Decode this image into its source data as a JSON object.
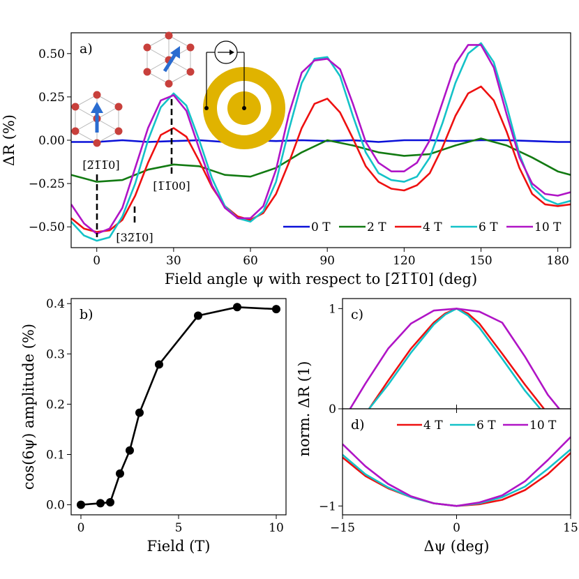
{
  "figure": {
    "panel_labels": [
      "a)",
      "b)",
      "c)",
      "d)"
    ],
    "colors": {
      "0 T": "#0a10d8",
      "2 T": "#127a12",
      "4 T": "#ee1010",
      "6 T": "#14c2c8",
      "10 T": "#b014c6",
      "gold": "#e0b300",
      "arrow": "#2a6cd0",
      "atom": "#c8403c"
    }
  },
  "chart_data": [
    {
      "id": "a",
      "type": "line",
      "title": "",
      "xlabel": "Field angle ψ with respect to [2̅1̅1̅0] (deg)",
      "ylabel": "ΔR (%)",
      "xlim": [
        -10,
        185
      ],
      "ylim": [
        -0.62,
        0.62
      ],
      "xticks": [
        0,
        30,
        60,
        90,
        120,
        150,
        180
      ],
      "yticks": [
        -0.5,
        -0.25,
        0.0,
        0.25,
        0.5
      ],
      "yticklabels": [
        "−0.50",
        "−0.25",
        "0.00",
        "0.25",
        "0.50"
      ],
      "legend": {
        "entries": [
          "0 T",
          "2 T",
          "4 T",
          "6 T",
          "10 T"
        ],
        "location": "lower-right"
      },
      "annotations": [
        {
          "text": "[2̅1̅1̅0]",
          "x": 0
        },
        {
          "text": "[1̅1̅00]",
          "x": 30
        },
        {
          "text": "[32̅1̅0]",
          "x": 15
        }
      ],
      "series": [
        {
          "name": "0 T",
          "x": [
            -10,
            0,
            10,
            20,
            30,
            40,
            50,
            60,
            70,
            80,
            90,
            100,
            110,
            120,
            130,
            140,
            150,
            160,
            170,
            180,
            185
          ],
          "y": [
            -0.01,
            -0.01,
            0.0,
            -0.01,
            -0.005,
            0.0,
            -0.01,
            0.0,
            -0.005,
            0.0,
            -0.005,
            0.0,
            -0.01,
            0.0,
            0.0,
            -0.005,
            0.0,
            0.0,
            -0.005,
            -0.01,
            -0.01
          ]
        },
        {
          "name": "2 T",
          "x": [
            -10,
            0,
            10,
            20,
            30,
            40,
            50,
            60,
            70,
            80,
            90,
            100,
            110,
            120,
            130,
            140,
            150,
            160,
            170,
            180,
            185
          ],
          "y": [
            -0.2,
            -0.24,
            -0.23,
            -0.17,
            -0.14,
            -0.15,
            -0.2,
            -0.21,
            -0.16,
            -0.07,
            0.0,
            -0.03,
            -0.07,
            -0.09,
            -0.08,
            -0.03,
            0.01,
            -0.03,
            -0.1,
            -0.18,
            -0.2
          ]
        },
        {
          "name": "4 T",
          "x": [
            -10,
            -5,
            0,
            5,
            10,
            15,
            20,
            25,
            30,
            35,
            40,
            45,
            50,
            55,
            60,
            65,
            70,
            75,
            80,
            85,
            90,
            95,
            100,
            105,
            110,
            115,
            120,
            125,
            130,
            135,
            140,
            145,
            150,
            155,
            160,
            165,
            170,
            175,
            180,
            185
          ],
          "y": [
            -0.45,
            -0.51,
            -0.53,
            -0.52,
            -0.46,
            -0.32,
            -0.13,
            0.03,
            0.07,
            0.02,
            -0.12,
            -0.27,
            -0.38,
            -0.44,
            -0.46,
            -0.42,
            -0.31,
            -0.13,
            0.07,
            0.21,
            0.24,
            0.16,
            0.01,
            -0.15,
            -0.24,
            -0.28,
            -0.29,
            -0.26,
            -0.19,
            -0.04,
            0.14,
            0.27,
            0.31,
            0.23,
            0.05,
            -0.16,
            -0.31,
            -0.37,
            -0.38,
            -0.37
          ]
        },
        {
          "name": "6 T",
          "x": [
            -10,
            -5,
            0,
            5,
            10,
            15,
            20,
            25,
            30,
            35,
            40,
            45,
            50,
            55,
            60,
            65,
            70,
            75,
            80,
            85,
            90,
            95,
            100,
            105,
            110,
            115,
            120,
            125,
            130,
            135,
            140,
            145,
            150,
            155,
            160,
            165,
            170,
            175,
            180,
            185
          ],
          "y": [
            -0.47,
            -0.55,
            -0.58,
            -0.56,
            -0.44,
            -0.25,
            0.0,
            0.19,
            0.27,
            0.2,
            0.0,
            -0.22,
            -0.38,
            -0.45,
            -0.47,
            -0.41,
            -0.24,
            0.06,
            0.33,
            0.47,
            0.48,
            0.37,
            0.14,
            -0.07,
            -0.19,
            -0.23,
            -0.24,
            -0.21,
            -0.1,
            0.1,
            0.33,
            0.5,
            0.56,
            0.45,
            0.2,
            -0.08,
            -0.27,
            -0.34,
            -0.37,
            -0.35
          ]
        },
        {
          "name": "10 T",
          "x": [
            -10,
            -5,
            0,
            5,
            10,
            15,
            20,
            25,
            30,
            35,
            40,
            45,
            50,
            55,
            60,
            65,
            70,
            75,
            80,
            85,
            90,
            95,
            100,
            105,
            110,
            115,
            120,
            125,
            130,
            135,
            140,
            145,
            150,
            155,
            160,
            165,
            170,
            175,
            180,
            185
          ],
          "y": [
            -0.37,
            -0.48,
            -0.54,
            -0.51,
            -0.39,
            -0.16,
            0.07,
            0.23,
            0.26,
            0.17,
            -0.05,
            -0.26,
            -0.39,
            -0.45,
            -0.45,
            -0.38,
            -0.17,
            0.15,
            0.39,
            0.46,
            0.47,
            0.41,
            0.21,
            -0.01,
            -0.13,
            -0.18,
            -0.18,
            -0.13,
            0.0,
            0.22,
            0.44,
            0.55,
            0.55,
            0.42,
            0.15,
            -0.1,
            -0.25,
            -0.31,
            -0.32,
            -0.3
          ]
        }
      ]
    },
    {
      "id": "b",
      "type": "line",
      "title": "",
      "xlabel": "Field (T)",
      "ylabel": "cos(6ψ) amplitude (%)",
      "xlim": [
        -0.5,
        10.5
      ],
      "ylim": [
        -0.02,
        0.41
      ],
      "xticks": [
        0,
        5,
        10
      ],
      "yticks": [
        0.0,
        0.1,
        0.2,
        0.3,
        0.4
      ],
      "yticklabels": [
        "0.0",
        "0.1",
        "0.2",
        "0.3",
        "0.4"
      ],
      "series": [
        {
          "name": "amplitude",
          "x": [
            0,
            1,
            1.5,
            2,
            2.5,
            3,
            4,
            6,
            8,
            10
          ],
          "y": [
            0.0,
            0.003,
            0.005,
            0.062,
            0.108,
            0.183,
            0.279,
            0.376,
            0.393,
            0.389
          ]
        }
      ]
    },
    {
      "id": "c",
      "type": "line",
      "title": "",
      "xlabel": "",
      "ylabel": "norm. ΔR (1)",
      "xlim": [
        -15,
        15
      ],
      "ylim": [
        0,
        1.1
      ],
      "xticks": [
        -15,
        0,
        15
      ],
      "yticks": [
        0,
        1
      ],
      "yticklabels": [
        "0",
        "1"
      ],
      "series": [
        {
          "name": "4 T",
          "x": [
            -11.5,
            -9,
            -6,
            -3,
            -1.5,
            0,
            1.5,
            3,
            6,
            9,
            11.5
          ],
          "y": [
            0.0,
            0.28,
            0.6,
            0.86,
            0.95,
            1.0,
            0.95,
            0.85,
            0.55,
            0.24,
            0.0
          ]
        },
        {
          "name": "6 T",
          "x": [
            -11.5,
            -9,
            -6,
            -3,
            -1.5,
            0,
            1.5,
            3,
            6,
            9,
            11
          ],
          "y": [
            0.0,
            0.24,
            0.56,
            0.84,
            0.94,
            1.0,
            0.93,
            0.81,
            0.5,
            0.18,
            0.0
          ]
        },
        {
          "name": "10 T",
          "x": [
            -14,
            -12,
            -9,
            -6,
            -3,
            0,
            3,
            6,
            9,
            12,
            13.5
          ],
          "y": [
            0.0,
            0.25,
            0.6,
            0.85,
            0.98,
            1.0,
            0.97,
            0.86,
            0.52,
            0.14,
            0.0
          ]
        }
      ]
    },
    {
      "id": "d",
      "type": "line",
      "title": "",
      "xlabel": "Δψ (deg)",
      "ylabel": "",
      "xlim": [
        -15,
        15
      ],
      "ylim": [
        -1.1,
        0.1
      ],
      "xticks": [
        -15,
        0,
        15
      ],
      "xticklabels": [
        "−15",
        "0",
        "15"
      ],
      "yticks": [
        -1
      ],
      "yticklabels": [
        "−1"
      ],
      "legend": {
        "entries": [
          "4 T",
          "6 T",
          "10 T"
        ],
        "location": "top-right"
      },
      "series": [
        {
          "name": "4 T",
          "x": [
            -15,
            -12,
            -9,
            -6,
            -3,
            0,
            3,
            6,
            9,
            12,
            15
          ],
          "y": [
            -0.45,
            -0.66,
            -0.8,
            -0.9,
            -0.97,
            -1.0,
            -0.98,
            -0.93,
            -0.82,
            -0.64,
            -0.4
          ]
        },
        {
          "name": "6 T",
          "x": [
            -15,
            -12,
            -9,
            -6,
            -3,
            0,
            3,
            6,
            9,
            12,
            15
          ],
          "y": [
            -0.42,
            -0.64,
            -0.79,
            -0.9,
            -0.97,
            -1.0,
            -0.97,
            -0.9,
            -0.78,
            -0.58,
            -0.36
          ]
        },
        {
          "name": "10 T",
          "x": [
            -15,
            -12,
            -9,
            -6,
            -3,
            0,
            3,
            6,
            9,
            12,
            15
          ],
          "y": [
            -0.3,
            -0.55,
            -0.75,
            -0.89,
            -0.97,
            -1.0,
            -0.96,
            -0.88,
            -0.72,
            -0.48,
            -0.22
          ]
        }
      ]
    }
  ]
}
